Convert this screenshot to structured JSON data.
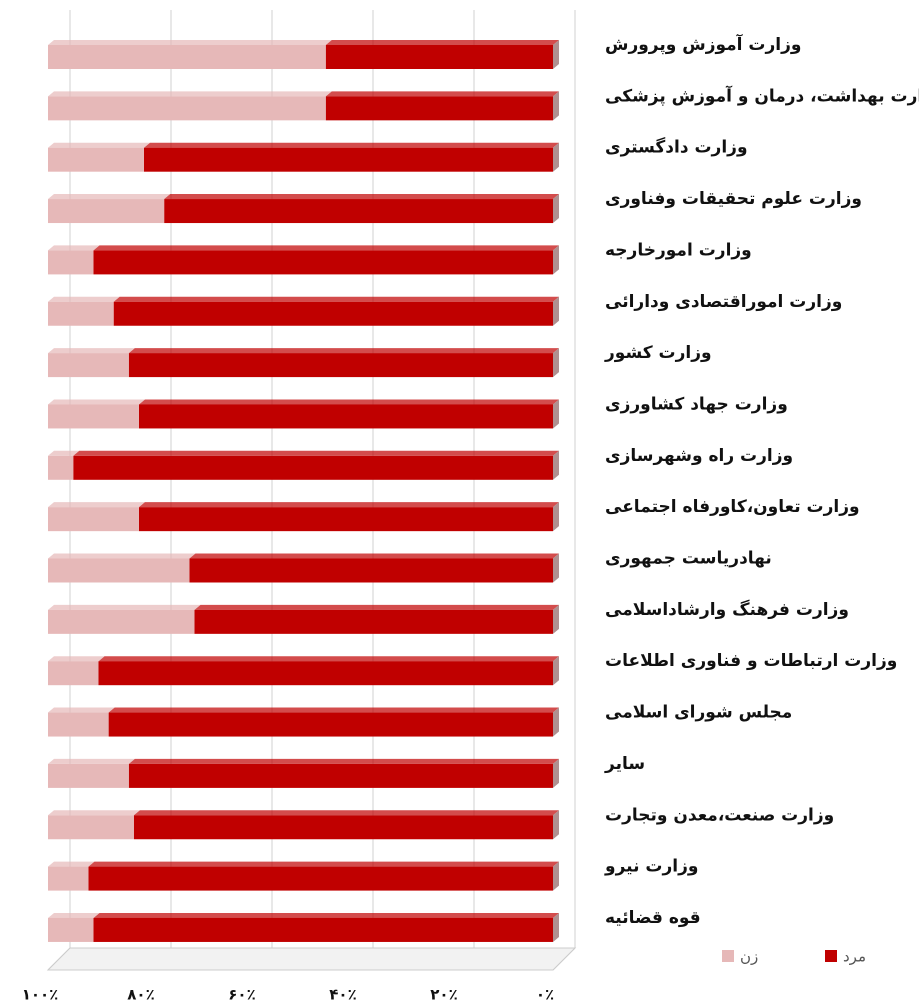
{
  "chart_data": {
    "type": "stacked_bar_horizontal",
    "categories": [
      "وزارت آموزش وپرورش",
      "وزارت بهداشت، درمان و آموزش پزشکی",
      "وزارت دادگستری",
      "وزارت علوم تحقیقات وفناوری",
      "وزارت امورخارجه",
      "وزارت اموراقتصادی ودارائی",
      "وزارت کشور",
      "وزارت جهاد کشاورزی",
      "وزارت راه وشهرسازی",
      "وزارت تعاون،کاورفاه اجتماعی",
      "نهادریاست جمهوری",
      "وزارت فرهنگ وارشاداسلامی",
      "وزارت ارتباطات و فناوری اطلاعات",
      "مجلس شورای اسلامی",
      "سایر",
      "وزارت صنعت،معدن وتجارت",
      "وزارت نیرو",
      "قوه قضائیه"
    ],
    "series": [
      {
        "name": "مرد",
        "color": "#c00000",
        "values": [
          45,
          45,
          81,
          77,
          91,
          87,
          84,
          82,
          95,
          82,
          72,
          71,
          90,
          88,
          84,
          83,
          92,
          91
        ]
      },
      {
        "name": "زن",
        "color": "#e6b8b8",
        "values": [
          55,
          55,
          19,
          23,
          9,
          13,
          16,
          18,
          5,
          18,
          28,
          29,
          10,
          12,
          16,
          17,
          8,
          9
        ]
      }
    ],
    "xlim": [
      0,
      100
    ],
    "x_reversed": true,
    "xticks": [
      {
        "value": 100,
        "label": "۱۰۰٪"
      },
      {
        "value": 80,
        "label": "۸۰٪"
      },
      {
        "value": 60,
        "label": "۶۰٪"
      },
      {
        "value": 40,
        "label": "۴۰٪"
      },
      {
        "value": 20,
        "label": "۲۰٪"
      },
      {
        "value": 0,
        "label": "۰٪"
      }
    ],
    "grid": true
  }
}
